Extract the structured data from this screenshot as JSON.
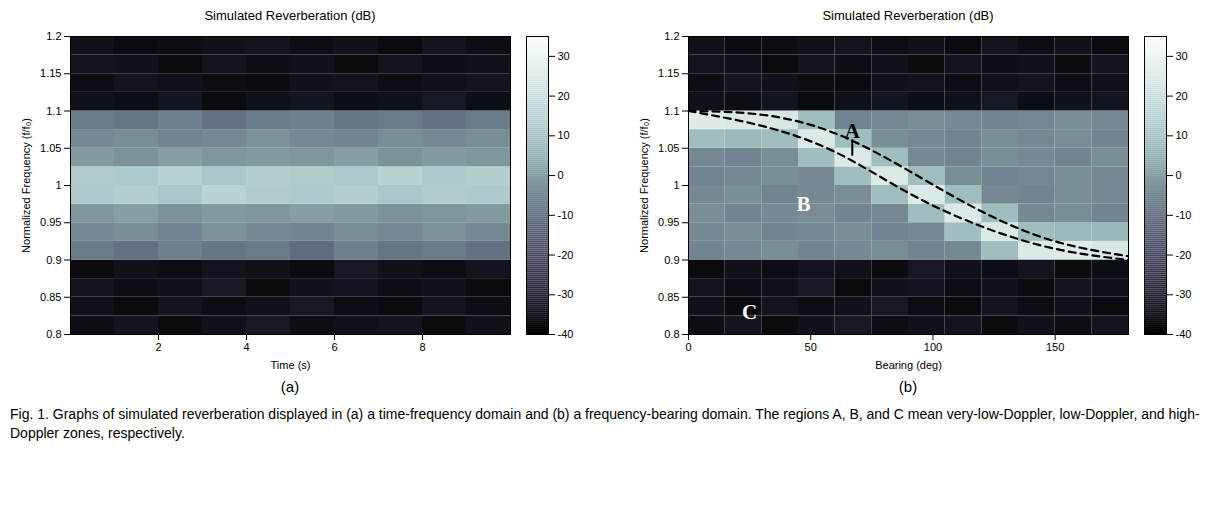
{
  "chart_data": [
    {
      "type": "heatmap",
      "title": "Simulated Reverberation (dB)",
      "x_label": "Time (s)",
      "y_label": "Normalized Frequency (f/f₀)",
      "panel_label": "(a)",
      "xlim": [
        0,
        10
      ],
      "xticks": [
        2,
        4,
        6,
        8
      ],
      "ylim": [
        0.8,
        1.2
      ],
      "yticks": [
        0.8,
        0.85,
        0.9,
        0.95,
        1,
        1.05,
        1.1,
        1.15,
        1.2
      ],
      "cells": {
        "x_edges": [
          0,
          1,
          2,
          3,
          4,
          5,
          6,
          7,
          8,
          9,
          10
        ],
        "y_edges": [
          0.8,
          0.825,
          0.85,
          0.875,
          0.9,
          0.925,
          0.95,
          0.975,
          1,
          1.025,
          1.05,
          1.075,
          1.1,
          1.125,
          1.15,
          1.175,
          1.2
        ],
        "values": [
          [
            -36,
            -34,
            -37,
            -35,
            -33,
            -36,
            -35,
            -34,
            -37,
            -35
          ],
          [
            -35,
            -37,
            -34,
            -36,
            -35,
            -33,
            -36,
            -37,
            -34,
            -36
          ],
          [
            -34,
            -36,
            -35,
            -33,
            -37,
            -35,
            -34,
            -36,
            -35,
            -37
          ],
          [
            -37,
            -35,
            -36,
            -34,
            -35,
            -37,
            -33,
            -35,
            -36,
            -34
          ],
          [
            -8,
            -10,
            -7,
            -9,
            -8,
            -11,
            -7,
            -9,
            -8,
            -10
          ],
          [
            -5,
            -4,
            -6,
            -3,
            -5,
            -6,
            -4,
            -5,
            -3,
            -5
          ],
          [
            -2,
            0,
            -3,
            -1,
            -2,
            0,
            -1,
            -3,
            -2,
            -1
          ],
          [
            12,
            14,
            11,
            15,
            13,
            12,
            14,
            11,
            13,
            12
          ],
          [
            13,
            12,
            15,
            11,
            14,
            13,
            12,
            15,
            12,
            14
          ],
          [
            -1,
            -3,
            0,
            -2,
            -1,
            -2,
            0,
            -3,
            -1,
            -2
          ],
          [
            -5,
            -4,
            -6,
            -5,
            -3,
            -5,
            -6,
            -4,
            -5,
            -4
          ],
          [
            -8,
            -9,
            -7,
            -10,
            -8,
            -7,
            -9,
            -8,
            -10,
            -8
          ],
          [
            -35,
            -36,
            -34,
            -37,
            -35,
            -34,
            -36,
            -35,
            -33,
            -36
          ],
          [
            -36,
            -34,
            -35,
            -36,
            -37,
            -35,
            -34,
            -36,
            -35,
            -34
          ],
          [
            -34,
            -35,
            -37,
            -34,
            -36,
            -35,
            -37,
            -34,
            -36,
            -35
          ],
          [
            -35,
            -37,
            -36,
            -35,
            -34,
            -36,
            -35,
            -37,
            -34,
            -36
          ]
        ]
      },
      "colorbar": {
        "range": [
          -40,
          35
        ],
        "ticks": [
          -40,
          -30,
          -20,
          -10,
          0,
          10,
          20,
          30
        ]
      }
    },
    {
      "type": "heatmap",
      "title": "Simulated Reverberation (dB)",
      "x_label": "Bearing (deg)",
      "y_label": "Normalized Frequency (f/f₀)",
      "panel_label": "(b)",
      "xlim": [
        0,
        180
      ],
      "xticks": [
        0,
        50,
        100,
        150
      ],
      "ylim": [
        0.8,
        1.2
      ],
      "yticks": [
        0.8,
        0.85,
        0.9,
        0.95,
        1,
        1.05,
        1.1,
        1.15,
        1.2
      ],
      "cells": {
        "x_edges": [
          0,
          15,
          30,
          45,
          60,
          75,
          90,
          105,
          120,
          135,
          150,
          165,
          180
        ],
        "y_edges": [
          0.8,
          0.825,
          0.85,
          0.875,
          0.9,
          0.925,
          0.95,
          0.975,
          1,
          1.025,
          1.05,
          1.075,
          1.1,
          1.125,
          1.15,
          1.175,
          1.2
        ],
        "values": [
          [
            -36,
            -34,
            -37,
            -35,
            -33,
            -36,
            -35,
            -34,
            -37,
            -35,
            -36,
            -34
          ],
          [
            -35,
            -37,
            -34,
            -36,
            -35,
            -33,
            -36,
            -37,
            -34,
            -36,
            -35,
            -37
          ],
          [
            -34,
            -36,
            -35,
            -33,
            -37,
            -35,
            -34,
            -36,
            -35,
            -37,
            -34,
            -35
          ],
          [
            -37,
            -35,
            -36,
            -34,
            -35,
            -37,
            -33,
            -35,
            -36,
            -34,
            -37,
            -36
          ],
          [
            -6,
            -5,
            -4,
            -6,
            -5,
            -4,
            -6,
            -5,
            8,
            25,
            26,
            24
          ],
          [
            -5,
            -4,
            -6,
            -5,
            -4,
            -6,
            -5,
            8,
            25,
            8,
            7,
            6
          ],
          [
            -4,
            -6,
            -5,
            -4,
            -6,
            -5,
            8,
            25,
            8,
            -5,
            -4,
            -6
          ],
          [
            -5,
            -4,
            -6,
            -5,
            -4,
            8,
            25,
            8,
            -5,
            -6,
            -4,
            -5
          ],
          [
            -6,
            -5,
            -4,
            -5,
            8,
            25,
            8,
            -4,
            -6,
            -5,
            -4,
            -5
          ],
          [
            -5,
            -6,
            -4,
            8,
            25,
            8,
            -5,
            -6,
            -4,
            -5,
            -6,
            -4
          ],
          [
            8,
            7,
            8,
            25,
            8,
            -4,
            -5,
            -6,
            -4,
            -5,
            -4,
            -6
          ],
          [
            26,
            25,
            24,
            8,
            -6,
            -5,
            -4,
            -5,
            -6,
            -5,
            -4,
            -5
          ],
          [
            -35,
            -36,
            -34,
            -37,
            -35,
            -34,
            -36,
            -35,
            -33,
            -36,
            -35,
            -34
          ],
          [
            -36,
            -34,
            -35,
            -36,
            -37,
            -35,
            -34,
            -36,
            -35,
            -34,
            -36,
            -35
          ],
          [
            -34,
            -35,
            -37,
            -34,
            -36,
            -35,
            -37,
            -34,
            -36,
            -35,
            -37,
            -34
          ],
          [
            -35,
            -37,
            -36,
            -35,
            -34,
            -36,
            -35,
            -37,
            -34,
            -36,
            -35,
            -37
          ]
        ]
      },
      "colorbar": {
        "range": [
          -40,
          35
        ],
        "ticks": [
          -40,
          -30,
          -20,
          -10,
          0,
          10,
          20,
          30
        ]
      },
      "boundaries": [
        {
          "line_style": "dashed",
          "color": "#000000",
          "x": [
            0,
            30,
            60,
            90,
            120,
            150,
            180
          ],
          "y": [
            1.1,
            1.095,
            1.07,
            1.02,
            0.965,
            0.925,
            0.905
          ]
        },
        {
          "line_style": "dashed",
          "color": "#000000",
          "x": [
            0,
            30,
            60,
            90,
            120,
            150,
            180
          ],
          "y": [
            1.1,
            1.08,
            1.045,
            0.99,
            0.945,
            0.915,
            0.9
          ]
        }
      ],
      "annotations": [
        {
          "text": "A",
          "x": 67,
          "y": 1.073,
          "color": "#000000",
          "pointer": [
            1.04,
            1.062
          ]
        },
        {
          "text": "B",
          "x": 47,
          "y": 0.975,
          "color": "#ffffff"
        },
        {
          "text": "C",
          "x": 25,
          "y": 0.83,
          "color": "#ffffff"
        }
      ]
    }
  ],
  "caption": "Fig. 1. Graphs of simulated reverberation displayed in (a) a time-frequency domain and (b) a frequency-bearing domain. The regions A, B, and C mean very-low-Doppler, low-Doppler, and high-Doppler zones, respectively."
}
